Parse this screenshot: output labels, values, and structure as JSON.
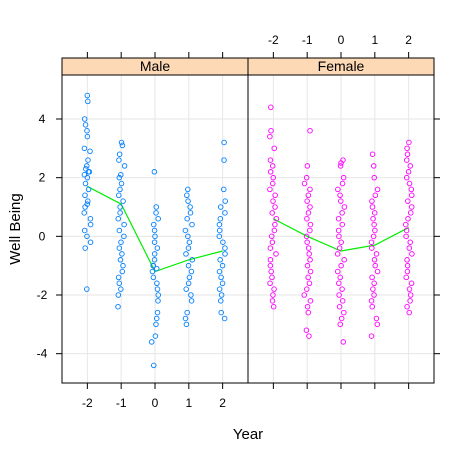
{
  "chart_data": {
    "type": "scatter",
    "title": "",
    "xlabel": "Year",
    "ylabel": "Well Being",
    "xlim": [
      -2.75,
      2.75
    ],
    "ylim": [
      -5.0,
      5.5
    ],
    "xticks": [
      -2,
      -1,
      0,
      1,
      2
    ],
    "yticks": [
      -4,
      -2,
      0,
      2,
      4
    ],
    "grid": true,
    "layout": "two panels side by side with labelled strips",
    "strip_color": "#fdd9b5",
    "panels": [
      {
        "name": "Male",
        "color": "#0080ff",
        "trend_color": "#00ee00",
        "trend": {
          "x": [
            -2,
            -1,
            0,
            1,
            2
          ],
          "y": [
            1.7,
            1.1,
            -1.2,
            -0.8,
            -0.5
          ]
        },
        "points": [
          {
            "x": -2,
            "values": [
              4.8,
              4.6,
              4.0,
              3.8,
              3.6,
              3.4,
              3.0,
              2.9,
              2.6,
              2.4,
              2.3,
              2.2,
              2.2,
              2.1,
              2.0,
              1.8,
              1.6,
              1.4,
              1.2,
              1.1,
              1.0,
              0.8,
              0.6,
              0.4,
              0.2,
              0.0,
              -0.2,
              -0.4,
              -1.8
            ]
          },
          {
            "x": -1,
            "values": [
              3.2,
              3.1,
              2.8,
              2.6,
              2.4,
              2.1,
              2.0,
              1.8,
              1.6,
              1.4,
              1.2,
              1.0,
              0.8,
              0.6,
              0.4,
              0.2,
              0.0,
              -0.2,
              -0.4,
              -0.6,
              -0.8,
              -1.0,
              -1.2,
              -1.4,
              -1.6,
              -1.8,
              -2.0,
              -2.4
            ]
          },
          {
            "x": 0,
            "values": [
              2.2,
              1.0,
              0.8,
              0.6,
              0.4,
              0.2,
              0.0,
              -0.2,
              -0.4,
              -0.6,
              -0.8,
              -1.0,
              -1.0,
              -1.1,
              -1.2,
              -1.4,
              -1.6,
              -1.8,
              -2.0,
              -2.2,
              -2.6,
              -2.8,
              -3.0,
              -3.4,
              -3.6,
              -4.4
            ]
          },
          {
            "x": 1,
            "values": [
              1.6,
              1.4,
              1.2,
              1.0,
              0.8,
              0.6,
              0.4,
              0.2,
              0.0,
              -0.2,
              -0.4,
              -0.6,
              -0.8,
              -1.0,
              -1.2,
              -1.4,
              -1.6,
              -1.8,
              -2.0,
              -2.2,
              -2.6,
              -2.8,
              -3.0
            ]
          },
          {
            "x": 2,
            "values": [
              3.2,
              2.6,
              1.6,
              1.2,
              1.0,
              0.8,
              0.6,
              0.4,
              0.2,
              0.0,
              -0.2,
              -0.4,
              -0.6,
              -0.8,
              -1.0,
              -1.2,
              -1.4,
              -1.6,
              -1.8,
              -2.0,
              -2.2,
              -2.6,
              -2.8
            ]
          }
        ]
      },
      {
        "name": "Female",
        "color": "#ff00ff",
        "trend_color": "#00ee00",
        "trend": {
          "x": [
            -2,
            -1,
            0,
            1,
            2
          ],
          "y": [
            0.6,
            0.0,
            -0.5,
            -0.3,
            0.3
          ]
        },
        "points": [
          {
            "x": -2,
            "values": [
              4.4,
              3.6,
              3.4,
              3.0,
              2.6,
              2.4,
              2.2,
              2.0,
              1.8,
              1.6,
              1.4,
              1.2,
              1.0,
              0.8,
              0.6,
              0.4,
              0.2,
              0.0,
              -0.2,
              -0.4,
              -0.6,
              -0.8,
              -1.0,
              -1.2,
              -1.4,
              -1.6,
              -1.8,
              -2.0,
              -2.2,
              -2.4
            ]
          },
          {
            "x": -1,
            "values": [
              3.6,
              2.4,
              2.0,
              1.8,
              1.6,
              1.4,
              1.2,
              1.0,
              0.8,
              0.6,
              0.4,
              0.2,
              0.0,
              -0.2,
              -0.4,
              -0.6,
              -0.8,
              -1.0,
              -1.2,
              -1.4,
              -1.6,
              -1.8,
              -2.0,
              -2.2,
              -2.4,
              -2.6,
              -3.2,
              -3.4
            ]
          },
          {
            "x": 0,
            "values": [
              2.6,
              2.5,
              2.4,
              2.0,
              1.8,
              1.6,
              1.4,
              1.2,
              1.0,
              0.8,
              0.6,
              0.4,
              0.2,
              0.0,
              -0.2,
              -0.4,
              -0.6,
              -0.8,
              -1.0,
              -1.2,
              -1.4,
              -1.6,
              -1.8,
              -2.0,
              -2.2,
              -2.4,
              -2.6,
              -2.8,
              -3.0,
              -3.6
            ]
          },
          {
            "x": 1,
            "values": [
              2.8,
              2.4,
              2.0,
              1.6,
              1.4,
              1.2,
              1.0,
              0.8,
              0.6,
              0.4,
              0.2,
              0.0,
              -0.2,
              -0.4,
              -0.6,
              -0.8,
              -1.0,
              -1.2,
              -1.4,
              -1.6,
              -1.8,
              -2.0,
              -2.2,
              -2.4,
              -2.8,
              -3.0,
              -3.4
            ]
          },
          {
            "x": 2,
            "values": [
              3.2,
              3.0,
              2.8,
              2.6,
              2.4,
              2.2,
              2.0,
              1.8,
              1.6,
              1.4,
              1.2,
              1.0,
              0.8,
              0.6,
              0.4,
              0.2,
              0.0,
              -0.2,
              -0.4,
              -0.6,
              -0.8,
              -1.0,
              -1.2,
              -1.4,
              -1.6,
              -1.8,
              -2.0,
              -2.2,
              -2.4,
              -2.6
            ]
          }
        ]
      }
    ]
  }
}
